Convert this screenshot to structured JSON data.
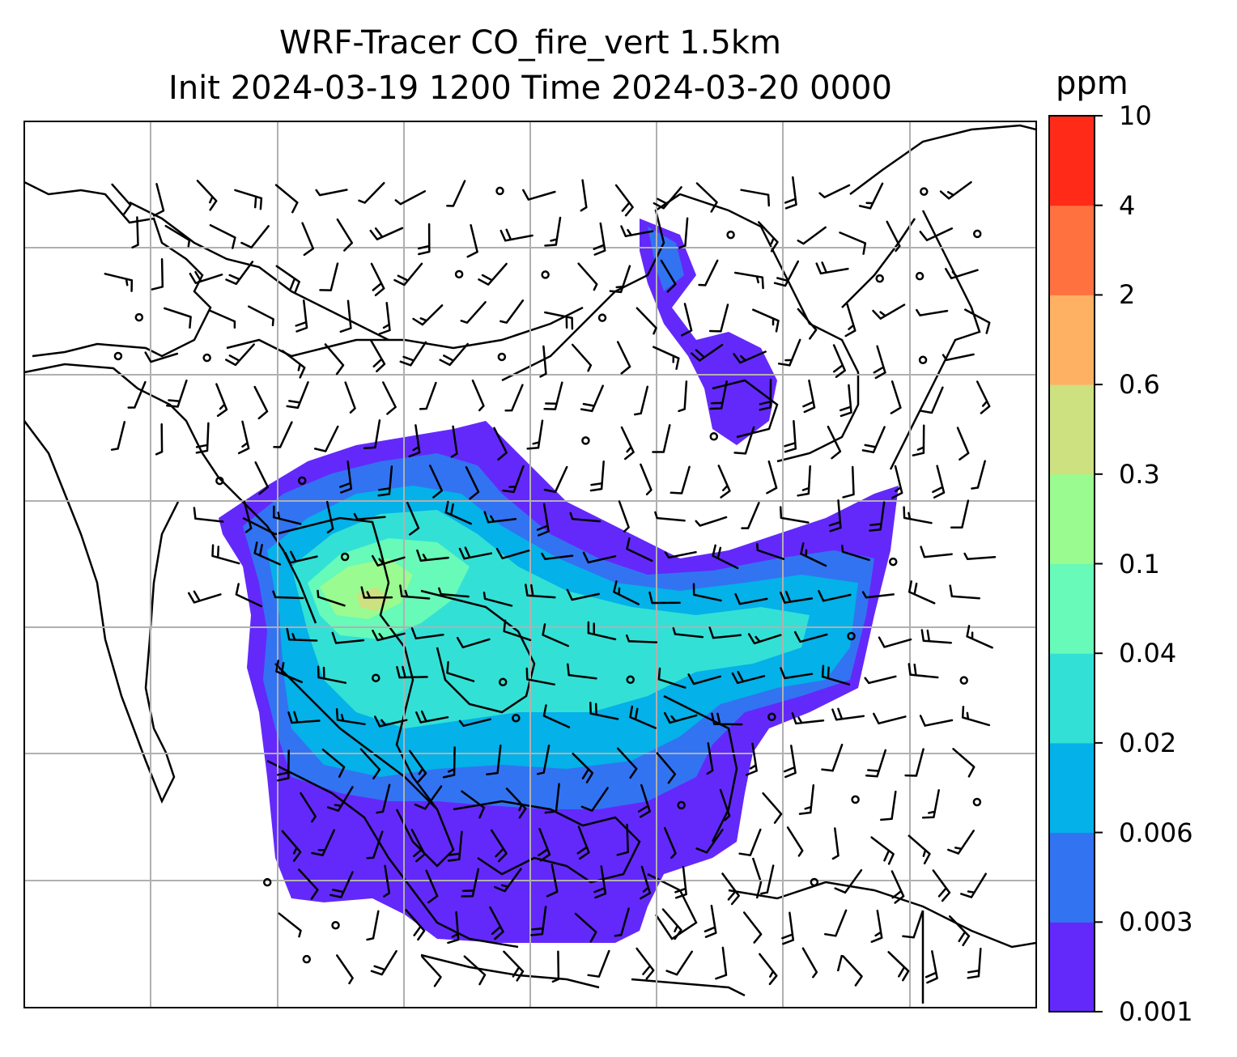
{
  "title": {
    "line1": "WRF-Tracer CO_fire_vert 1.5km",
    "line2": "Init 2024-03-19 1200 Time 2024-03-20 0000"
  },
  "colorbar": {
    "unit": "ppm",
    "levels": [
      "0.001",
      "0.003",
      "0.006",
      "0.02",
      "0.04",
      "0.1",
      "0.3",
      "0.6",
      "2",
      "4",
      "10"
    ],
    "colors": [
      "#6329fa",
      "#3273f2",
      "#04b1e8",
      "#33e0d6",
      "#67fab9",
      "#9afb90",
      "#cde180",
      "#ffb163",
      "#ff7240",
      "#ff2a18"
    ]
  },
  "map": {
    "field": "CO_fire_vert",
    "level": "1.5km",
    "overlays": [
      "coastlines",
      "gridlines",
      "wind-barbs"
    ]
  }
}
